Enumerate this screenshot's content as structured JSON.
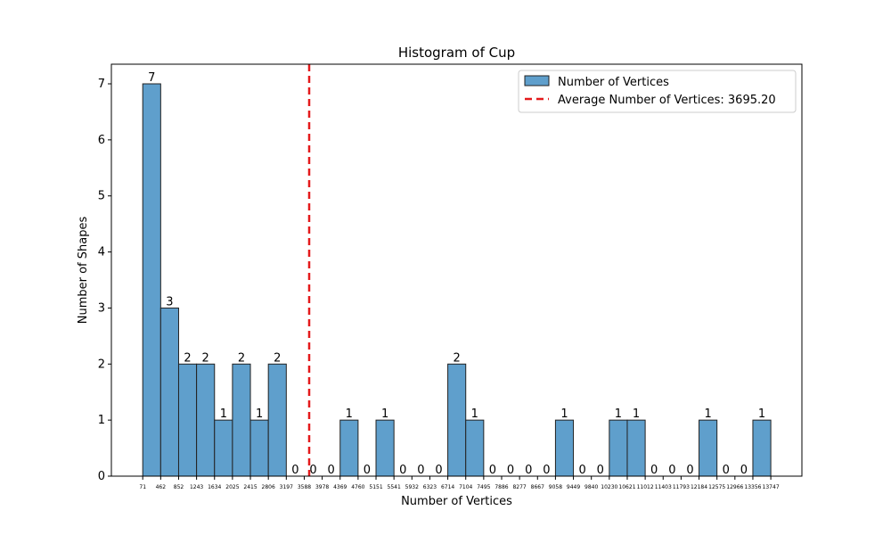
{
  "chart_data": {
    "type": "bar",
    "title": "Histogram of Cup",
    "xlabel": "Number of Vertices",
    "ylabel": "Number of Shapes",
    "ylim": [
      0,
      7.35
    ],
    "yticks": [
      0,
      1,
      2,
      3,
      4,
      5,
      6,
      7
    ],
    "bin_edges": [
      71,
      462,
      852,
      1243,
      1634,
      2025,
      2415,
      2806,
      3197,
      3588,
      3978,
      4369,
      4760,
      5151,
      5541,
      5932,
      6323,
      6714,
      7104,
      7495,
      7886,
      8277,
      8667,
      9058,
      9449,
      9840,
      10230,
      10621,
      11012,
      11403,
      11793,
      12184,
      12575,
      12966,
      13356,
      13747
    ],
    "xtick_labels": [
      "71",
      "462",
      "852",
      "1243",
      "1634",
      "2025",
      "2415",
      "2806",
      "3197",
      "3588",
      "3978",
      "4369",
      "4760",
      "5151",
      "5541",
      "5932",
      "6323",
      "6714",
      "7104",
      "7495",
      "7886",
      "8277",
      "8667",
      "9058",
      "9449",
      "9840",
      "10230",
      "10621",
      "11012",
      "11403",
      "11793",
      "12184",
      "12575",
      "12966",
      "13356",
      "13747"
    ],
    "values": [
      7,
      3,
      2,
      2,
      1,
      2,
      1,
      2,
      0,
      0,
      0,
      1,
      0,
      1,
      0,
      0,
      0,
      2,
      1,
      0,
      0,
      0,
      0,
      1,
      0,
      0,
      1,
      1,
      0,
      0,
      0,
      1,
      0,
      0,
      1
    ],
    "bar_color": "#5f9fcc",
    "bar_edge_color": "#222222",
    "average": {
      "value": 3695.2,
      "color": "#e41a1c"
    },
    "legend": {
      "position": "top-right",
      "entries": [
        "Number of Vertices",
        "Average Number of Vertices: 3695.20"
      ]
    },
    "grid": false
  }
}
